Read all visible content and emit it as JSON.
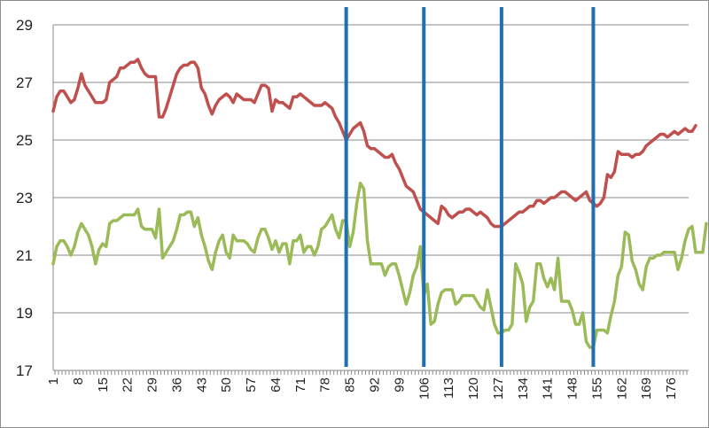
{
  "chart_data": {
    "type": "line",
    "title": "",
    "xlabel": "",
    "ylabel": "",
    "x_start": 1,
    "x_end": 181,
    "x_tick_labels": [
      "1",
      "8",
      "15",
      "22",
      "29",
      "36",
      "43",
      "50",
      "57",
      "64",
      "71",
      "78",
      "85",
      "92",
      "99",
      "106",
      "113",
      "120",
      "127",
      "134",
      "141",
      "148",
      "155",
      "162",
      "169",
      "176"
    ],
    "y_tick_labels": [
      "17",
      "19",
      "21",
      "23",
      "25",
      "27",
      "29"
    ],
    "ylim": [
      17,
      29
    ],
    "grid": "horizontal",
    "legend": "none",
    "vertical_markers": [
      84,
      106,
      128,
      154
    ],
    "marker_color": "#1f6fb2",
    "series": [
      {
        "color": "#c0504d",
        "values": [
          26.0,
          26.5,
          26.7,
          26.7,
          26.5,
          26.3,
          26.4,
          26.8,
          27.3,
          26.9,
          26.7,
          26.5,
          26.3,
          26.3,
          26.3,
          26.4,
          27.0,
          27.1,
          27.2,
          27.5,
          27.5,
          27.6,
          27.7,
          27.7,
          27.8,
          27.5,
          27.3,
          27.2,
          27.2,
          27.2,
          25.8,
          25.8,
          26.1,
          26.5,
          26.9,
          27.3,
          27.5,
          27.6,
          27.6,
          27.7,
          27.7,
          27.5,
          26.8,
          26.6,
          26.2,
          25.9,
          26.2,
          26.4,
          26.5,
          26.6,
          26.5,
          26.3,
          26.6,
          26.5,
          26.4,
          26.4,
          26.4,
          26.3,
          26.6,
          26.9,
          26.9,
          26.8,
          26.0,
          26.4,
          26.3,
          26.3,
          26.2,
          26.1,
          26.5,
          26.5,
          26.6,
          26.5,
          26.4,
          26.3,
          26.2,
          26.2,
          26.2,
          26.3,
          26.2,
          26.1,
          25.8,
          25.6,
          25.3,
          25.0,
          25.2,
          25.4,
          25.5,
          25.6,
          25.3,
          24.8,
          24.7,
          24.7,
          24.6,
          24.5,
          24.4,
          24.4,
          24.5,
          24.2,
          24.0,
          23.7,
          23.4,
          23.3,
          23.2,
          22.9,
          22.6,
          22.5,
          22.4,
          22.3,
          22.2,
          22.1,
          22.7,
          22.6,
          22.4,
          22.3,
          22.4,
          22.5,
          22.5,
          22.6,
          22.6,
          22.5,
          22.4,
          22.5,
          22.4,
          22.3,
          22.1,
          22.0,
          22.0,
          22.0,
          22.1,
          22.2,
          22.3,
          22.4,
          22.5,
          22.5,
          22.6,
          22.7,
          22.7,
          22.9,
          22.9,
          22.8,
          22.9,
          23.0,
          23.0,
          23.1,
          23.2,
          23.2,
          23.1,
          23.0,
          22.9,
          23.0,
          23.1,
          23.2,
          22.9,
          22.8,
          22.7,
          22.8,
          23.0,
          23.8,
          23.7,
          23.9,
          24.6,
          24.5,
          24.5,
          24.5,
          24.4,
          24.5,
          24.5,
          24.6,
          24.8,
          24.9,
          25.0,
          25.1,
          25.2,
          25.2,
          25.1,
          25.2,
          25.3,
          25.2,
          25.3,
          25.4,
          25.3,
          25.3,
          25.5
        ]
      },
      {
        "color": "#9bbb59",
        "values": [
          20.7,
          21.3,
          21.5,
          21.5,
          21.3,
          21.0,
          21.3,
          21.8,
          22.1,
          21.9,
          21.7,
          21.3,
          20.7,
          21.2,
          21.4,
          21.3,
          22.1,
          22.2,
          22.2,
          22.3,
          22.4,
          22.4,
          22.4,
          22.4,
          22.6,
          22.0,
          21.9,
          21.9,
          21.9,
          21.6,
          22.6,
          20.9,
          21.1,
          21.3,
          21.5,
          21.9,
          22.4,
          22.4,
          22.5,
          22.5,
          22.0,
          22.3,
          21.7,
          21.3,
          20.8,
          20.5,
          21.1,
          21.5,
          21.7,
          21.1,
          20.9,
          21.7,
          21.5,
          21.5,
          21.5,
          21.4,
          21.2,
          21.1,
          21.6,
          21.9,
          21.9,
          21.6,
          21.2,
          21.5,
          21.1,
          21.4,
          21.4,
          20.7,
          21.5,
          21.5,
          21.7,
          21.1,
          21.3,
          21.3,
          21.0,
          21.3,
          21.9,
          22.0,
          22.2,
          22.4,
          21.9,
          21.6,
          22.2,
          22.2,
          21.3,
          21.8,
          22.8,
          23.5,
          23.3,
          21.5,
          20.7,
          20.7,
          20.7,
          20.7,
          20.3,
          20.6,
          20.7,
          20.7,
          20.3,
          19.8,
          19.3,
          19.7,
          20.3,
          20.6,
          21.3,
          19.6,
          20.0,
          18.6,
          18.7,
          19.3,
          19.7,
          19.8,
          19.8,
          19.8,
          19.3,
          19.4,
          19.6,
          19.6,
          19.6,
          19.6,
          19.4,
          19.2,
          19.1,
          19.8,
          19.2,
          18.6,
          18.3,
          18.3,
          18.4,
          18.4,
          18.6,
          20.7,
          20.4,
          20.0,
          18.7,
          19.2,
          19.4,
          20.7,
          20.7,
          20.2,
          19.9,
          20.2,
          19.8,
          20.9,
          19.4,
          19.4,
          19.4,
          19.1,
          18.6,
          18.6,
          19.0,
          18.0,
          17.8,
          17.8,
          18.4,
          18.4,
          18.4,
          18.3,
          18.9,
          19.4,
          20.3,
          20.6,
          21.8,
          21.7,
          20.8,
          20.5,
          20.0,
          19.8,
          20.6,
          20.9,
          20.9,
          21.0,
          21.0,
          21.1,
          21.1,
          21.1,
          21.1,
          20.5,
          20.9,
          21.5,
          21.9,
          22.0,
          21.1,
          21.1,
          21.1,
          22.1
        ]
      }
    ]
  }
}
